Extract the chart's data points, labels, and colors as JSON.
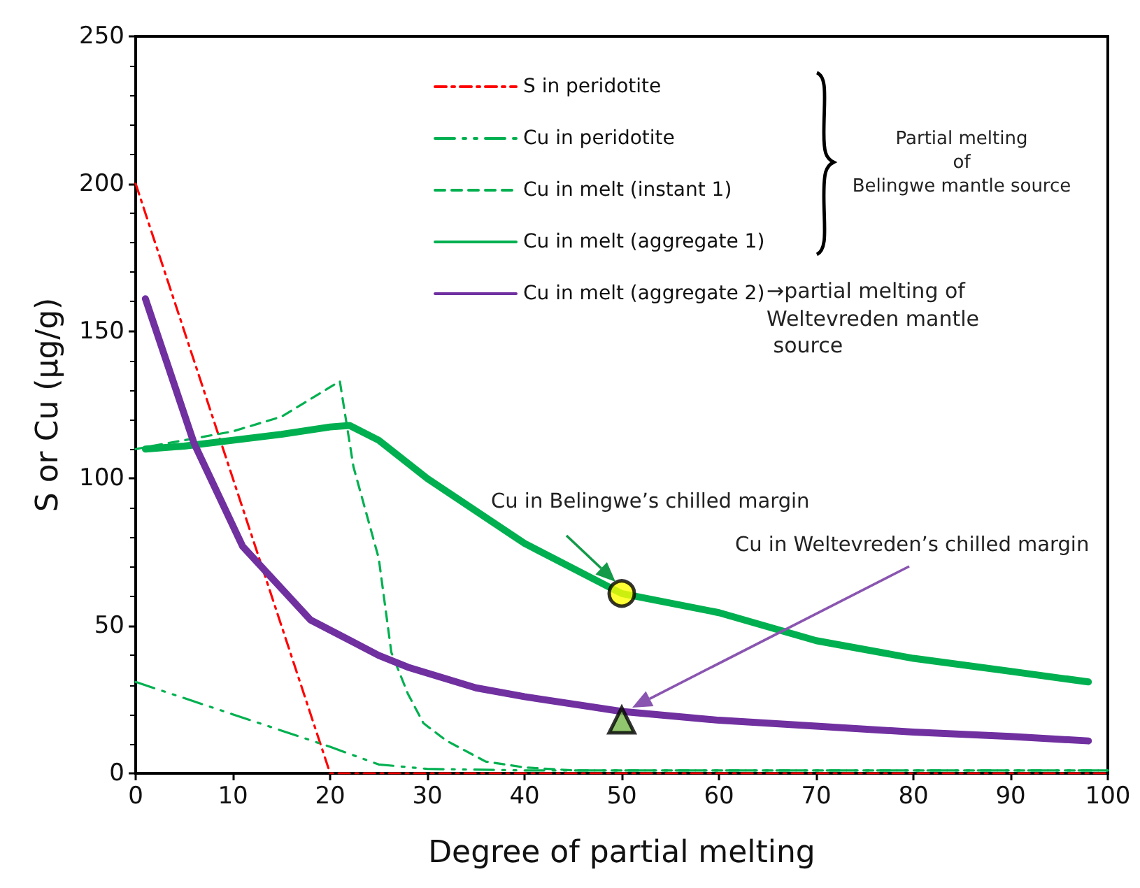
{
  "chart_data": {
    "type": "line",
    "xlabel": "Degree of partial melting",
    "ylabel": "S or Cu (µg/g)",
    "xlim": [
      0,
      100
    ],
    "xticks": [
      0,
      10,
      20,
      30,
      40,
      50,
      60,
      70,
      80,
      90,
      100
    ],
    "ylim": [
      0,
      250
    ],
    "yticks": [
      0,
      50,
      100,
      150,
      200,
      250
    ],
    "grid": false,
    "legend": "top",
    "marker": "none",
    "series": [
      {
        "name": "S in peridotite",
        "color": "#ff0000",
        "line_style": "dashdot",
        "x": [
          0,
          20,
          100
        ],
        "values": [
          200,
          0,
          0
        ]
      },
      {
        "name": "Cu in peridotite",
        "color": "#00b050",
        "line_style": "dashdotdot",
        "x": [
          0,
          10,
          20,
          25,
          30,
          40,
          100
        ],
        "values": [
          31,
          20,
          9,
          3,
          1.5,
          1,
          1
        ]
      },
      {
        "name": "Cu in melt (instant 1)",
        "color": "#00b050",
        "line_style": "dashed",
        "x": [
          0,
          10,
          15,
          21,
          22.4,
          25,
          26.3,
          28,
          29.6,
          32,
          36,
          40,
          45,
          100
        ],
        "values": [
          110,
          116,
          121,
          133,
          104,
          73,
          41,
          27,
          17,
          11,
          4,
          2,
          1,
          1
        ]
      },
      {
        "name": "Cu in melt (aggregate 1)",
        "color": "#00b050",
        "line_style": "solid",
        "x": [
          1,
          5,
          10,
          15,
          20,
          22,
          25,
          30,
          40,
          50,
          60,
          70,
          80,
          90,
          98
        ],
        "values": [
          110,
          111,
          113,
          115,
          117.5,
          118,
          113,
          100,
          78,
          61,
          54.5,
          45,
          39,
          34.6,
          31
        ]
      },
      {
        "name": "Cu in melt (aggregate 2)",
        "color": "#7030a0",
        "line_style": "solid",
        "x": [
          1,
          6,
          11,
          18,
          25,
          28,
          35,
          40,
          50,
          60,
          70,
          80,
          90,
          98
        ],
        "values": [
          161,
          112,
          77,
          52,
          40,
          36,
          29,
          26,
          21,
          18,
          16,
          14,
          12.5,
          11
        ]
      },
      {
        "type": "scatter",
        "color": "#ffff00",
        "marker": "circle",
        "x": [
          50
        ],
        "values": [
          61
        ]
      },
      {
        "type": "scatter",
        "color": "#77b84a",
        "marker": "triangle",
        "x": [
          50
        ],
        "values": [
          18
        ]
      }
    ],
    "annotations": [
      "Cu in Belingwe’s chilled margin",
      "Cu in Weltevreden’s chilled margin",
      "Partial melting\nof\nBelingwe mantle source",
      "→partial melting of\nWeltevreden mantle\n source"
    ]
  }
}
